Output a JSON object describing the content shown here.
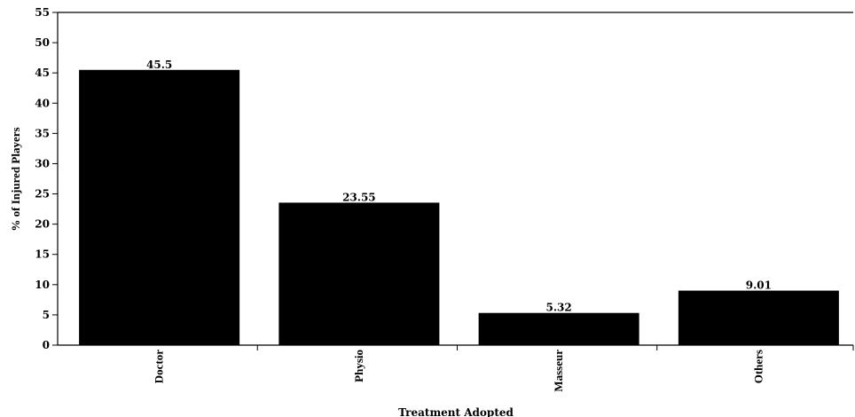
{
  "chart_data": {
    "type": "bar",
    "title": "",
    "xlabel": "Treatment Adopted",
    "ylabel": "% of Injured Players",
    "categories": [
      "Doctor",
      "Physio",
      "Masseur",
      "Others"
    ],
    "values": [
      45.5,
      23.55,
      5.32,
      9.01
    ],
    "data_labels": [
      "45.5",
      "23.55",
      "5.32",
      "9.01"
    ],
    "ylim": [
      0,
      55
    ],
    "yticks": [
      0,
      5,
      10,
      15,
      20,
      25,
      30,
      35,
      40,
      45,
      50,
      55
    ],
    "ytick_labels": [
      "0",
      "5",
      "10",
      "15",
      "20",
      "25",
      "30",
      "35",
      "40",
      "45",
      "50",
      "55"
    ],
    "bar_color": "#000000",
    "grid": false,
    "legend": "none"
  }
}
